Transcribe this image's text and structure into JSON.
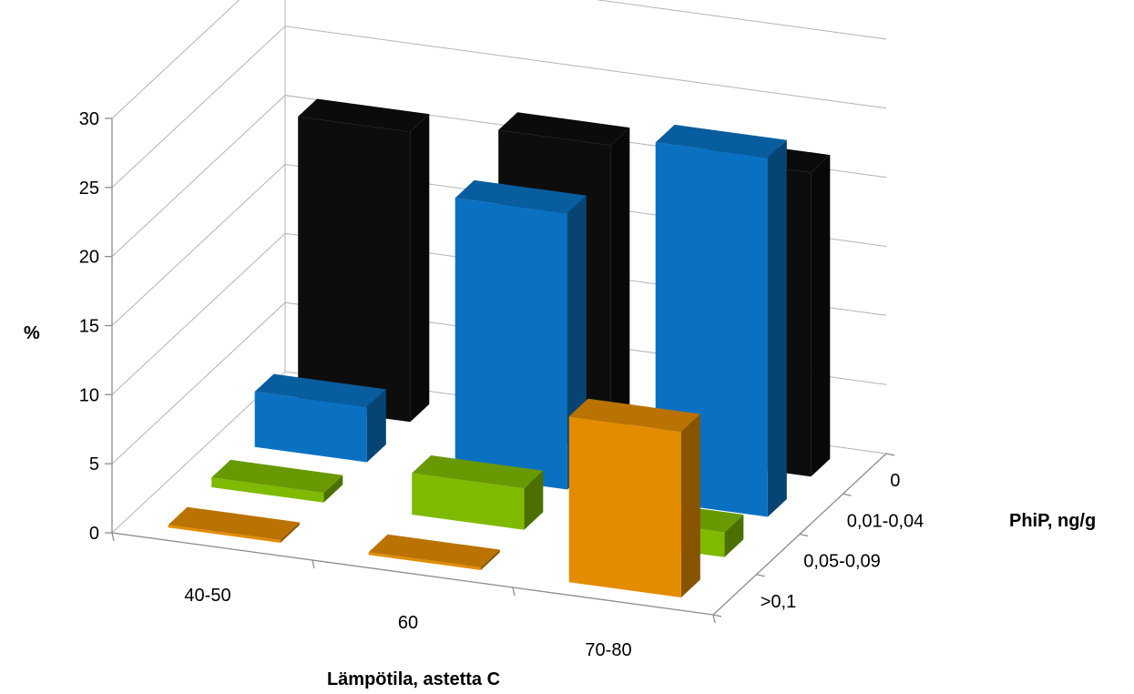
{
  "chart_data": {
    "type": "bar",
    "subtype": "3d-column",
    "title": "",
    "ylabel": "%",
    "xlabel": "Lämpötila, astetta C",
    "zlabel": "PhiP, ng/g",
    "ylim": [
      0,
      30
    ],
    "yticks": [
      "0",
      "5",
      "10",
      "15",
      "20",
      "25",
      "30"
    ],
    "categories": [
      "40-50",
      "60",
      "70-80"
    ],
    "grid": true,
    "legend": "none",
    "series": [
      {
        "name": "0",
        "color": "#0d0d0d",
        "values": [
          21,
          22,
          22
        ]
      },
      {
        "name": "0,01-0,04",
        "color": "#0a71c2",
        "values": [
          4,
          20,
          26
        ]
      },
      {
        "name": "0,05-0,09",
        "color": "#7fba00",
        "values": [
          0.7,
          3,
          1.8
        ]
      },
      {
        "name": ">0,1",
        "color": "#e38c00",
        "values": [
          0.2,
          0.2,
          12
        ]
      }
    ]
  }
}
